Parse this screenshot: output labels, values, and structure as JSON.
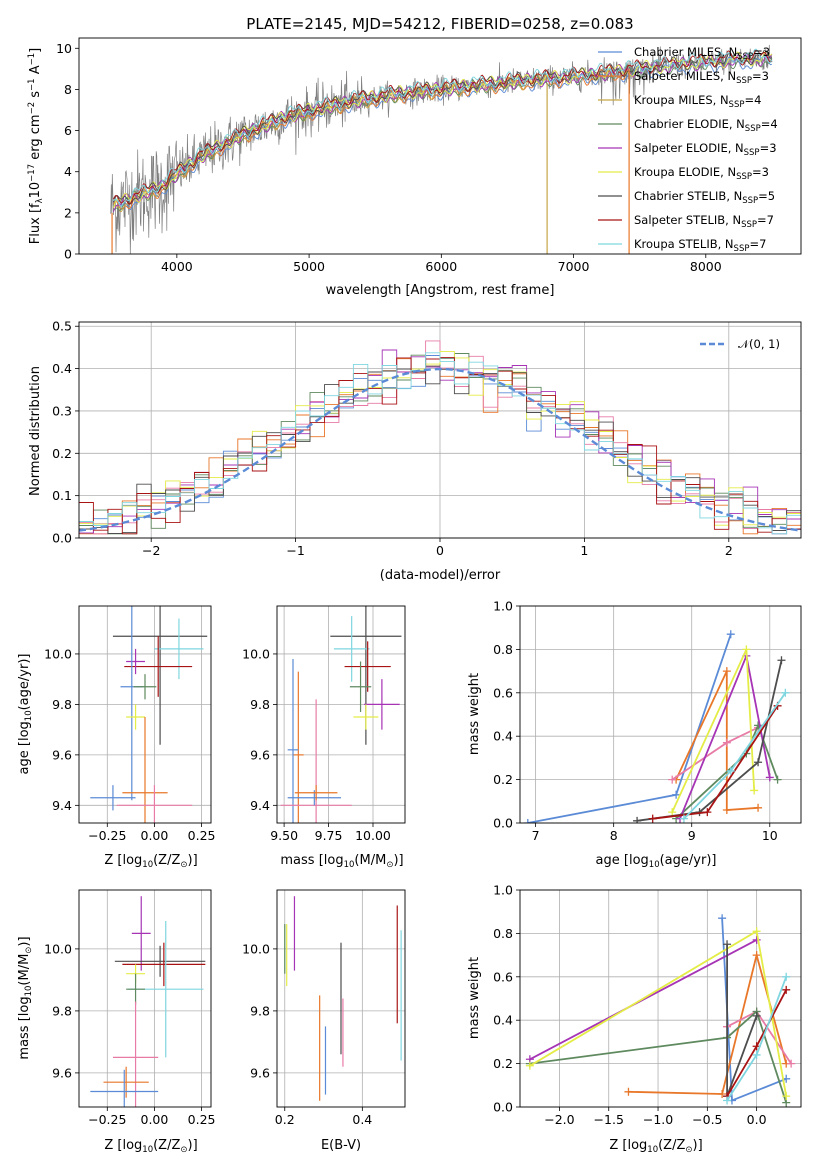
{
  "figure": {
    "title": "PLATE=2145, MJD=54212, FIBERID=0258, z=0.083"
  },
  "colors": {
    "chabrier_miles": "#5b8bd6",
    "salpeter_miles": "#e8772a",
    "kroupa_miles": "#c6a646",
    "chabrier_elodie": "#5f8a5f",
    "salpeter_elodie": "#a634b5",
    "kroupa_elodie": "#e4ec46",
    "chabrier_stelib": "#4d4d4d",
    "salpeter_stelib": "#a81414",
    "kroupa_stelib": "#7fd6e0",
    "data": "#7f7f7f",
    "pink": "#e87ba6",
    "normal": "#5b8bd6"
  },
  "chart_data": [
    {
      "id": "spectrum",
      "type": "line",
      "title": "PLATE=2145, MJD=54212, FIBERID=0258, z=0.083",
      "xlabel": "wavelength [Angstrom, rest frame]",
      "ylabel": "Flux [f_λ 10^-17 erg cm^-2 s^-1 A^-1]",
      "xlim": [
        3260,
        8720
      ],
      "ylim": [
        0,
        10.5
      ],
      "xticks": [
        4000,
        5000,
        6000,
        7000,
        8000
      ],
      "yticks": [
        0,
        2,
        4,
        6,
        8,
        10
      ],
      "legend_position": "upper-right",
      "legend": [
        {
          "base": "Chabrier MILES, N",
          "sub": "SSP",
          "tail": "=3",
          "color": "#5b8bd6"
        },
        {
          "base": "Salpeter MILES, N",
          "sub": "SSP",
          "tail": "=3",
          "color": "#e8772a"
        },
        {
          "base": "Kroupa MILES, N",
          "sub": "SSP",
          "tail": "=4",
          "color": "#c6a646"
        },
        {
          "base": "Chabrier ELODIE, N",
          "sub": "SSP",
          "tail": "=4",
          "color": "#5f8a5f"
        },
        {
          "base": "Salpeter ELODIE, N",
          "sub": "SSP",
          "tail": "=3",
          "color": "#a634b5"
        },
        {
          "base": "Kroupa ELODIE, N",
          "sub": "SSP",
          "tail": "=3",
          "color": "#e4ec46"
        },
        {
          "base": "Chabrier STELIB, N",
          "sub": "SSP",
          "tail": "=5",
          "color": "#4d4d4d"
        },
        {
          "base": "Salpeter STELIB, N",
          "sub": "SSP",
          "tail": "=7",
          "color": "#a81414"
        },
        {
          "base": "Kroupa STELIB, N",
          "sub": "SSP",
          "tail": "=7",
          "color": "#7fd6e0"
        }
      ],
      "continuum": {
        "x": [
          3500,
          3700,
          3900,
          4000,
          4200,
          4500,
          4800,
          5100,
          5400,
          5700,
          6000,
          6300,
          6600,
          7000,
          7400,
          7800,
          8200,
          8500
        ],
        "y": [
          2.3,
          2.8,
          3.3,
          3.9,
          4.8,
          5.8,
          6.6,
          7.1,
          7.5,
          7.8,
          8.0,
          8.2,
          8.4,
          8.6,
          8.9,
          9.2,
          9.4,
          9.5
        ]
      },
      "model_cutoffs": [
        {
          "series": "Kroupa MILES",
          "x": 6800,
          "y_from": 8.3
        },
        {
          "series": "Salpeter MILES",
          "x": 7420,
          "y_from": 9.0
        }
      ]
    },
    {
      "id": "residuals",
      "type": "step",
      "xlabel": "(data-model)/error",
      "ylabel": "Normed distribution",
      "xlim": [
        -2.5,
        2.5
      ],
      "ylim": [
        0,
        0.51
      ],
      "xticks": [
        -2,
        -1,
        0,
        1,
        2
      ],
      "yticks": [
        0.0,
        0.1,
        0.2,
        0.3,
        0.4,
        0.5
      ],
      "grid": true,
      "legend_position": "upper-right",
      "legend": [
        {
          "label": "𝒩(0, 1)",
          "color": "#5b8bd6",
          "dash": true
        }
      ],
      "bin_width": 0.1
    },
    {
      "id": "age_vs_Z",
      "type": "errorbar",
      "xlabel": "Z [log10(Z/Z⊙)]",
      "ylabel": "age [log10(age/yr)]",
      "xlim": [
        -0.4,
        0.3
      ],
      "ylim": [
        9.33,
        10.19
      ],
      "xticks": [
        -0.25,
        0.0,
        0.25
      ],
      "yticks": [
        9.4,
        9.6,
        9.8,
        10.0
      ],
      "grid": true,
      "points": [
        {
          "x": 0.03,
          "y": 10.07,
          "xerr": 0.25,
          "yerr": 0.43,
          "color": "#4d4d4d"
        },
        {
          "x": 0.13,
          "y": 10.02,
          "xerr": 0.13,
          "yerr": 0.12,
          "color": "#7fd6e0"
        },
        {
          "x": 0.02,
          "y": 9.95,
          "xerr": 0.18,
          "yerr": 0.12,
          "color": "#a81414"
        },
        {
          "x": -0.1,
          "y": 9.97,
          "xerr": 0.05,
          "yerr": 0.05,
          "color": "#a634b5"
        },
        {
          "x": -0.12,
          "y": 9.87,
          "xerr": 0.06,
          "yerr": 0.45,
          "color": "#5b8bd6"
        },
        {
          "x": -0.05,
          "y": 9.87,
          "xerr": 0.06,
          "yerr": 0.05,
          "color": "#5f8a5f"
        },
        {
          "x": -0.1,
          "y": 9.75,
          "xerr": 0.05,
          "yerr": 0.05,
          "color": "#e4ec46"
        },
        {
          "x": -0.05,
          "y": 9.45,
          "xerr": 0.12,
          "yerr": 0.3,
          "color": "#e8772a"
        },
        {
          "x": -0.22,
          "y": 9.43,
          "xerr": 0.12,
          "yerr": 0.05,
          "color": "#5b8bd6"
        },
        {
          "x": 0.0,
          "y": 9.4,
          "xerr": 0.2,
          "yerr": 0.08,
          "color": "#e87ba6"
        }
      ]
    },
    {
      "id": "age_vs_mass",
      "type": "errorbar",
      "xlabel": "mass [log10(M/M⊙)]",
      "ylabel": "",
      "xlim": [
        9.46,
        10.18
      ],
      "ylim": [
        9.33,
        10.19
      ],
      "xticks": [
        9.5,
        9.75,
        10.0
      ],
      "yticks": [
        9.4,
        9.6,
        9.8,
        10.0
      ],
      "grid": true,
      "points": [
        {
          "x": 9.96,
          "y": 10.07,
          "xerr": 0.2,
          "yerr": 0.43,
          "color": "#4d4d4d"
        },
        {
          "x": 9.88,
          "y": 10.02,
          "xerr": 0.1,
          "yerr": 0.13,
          "color": "#7fd6e0"
        },
        {
          "x": 9.97,
          "y": 9.95,
          "xerr": 0.13,
          "yerr": 0.1,
          "color": "#a81414"
        },
        {
          "x": 9.93,
          "y": 9.87,
          "xerr": 0.06,
          "yerr": 0.1,
          "color": "#5f8a5f"
        },
        {
          "x": 10.05,
          "y": 9.8,
          "xerr": 0.1,
          "yerr": 0.1,
          "color": "#a634b5"
        },
        {
          "x": 9.96,
          "y": 9.75,
          "xerr": 0.07,
          "yerr": 0.05,
          "color": "#e4ec46"
        },
        {
          "x": 9.58,
          "y": 9.6,
          "xerr": 0.03,
          "yerr": 0.33,
          "color": "#e8772a"
        },
        {
          "x": 9.55,
          "y": 9.62,
          "xerr": 0.03,
          "yerr": 0.36,
          "color": "#5b8bd6"
        },
        {
          "x": 9.68,
          "y": 9.4,
          "xerr": 0.2,
          "yerr": 0.42,
          "color": "#e87ba6"
        },
        {
          "x": 9.67,
          "y": 9.43,
          "xerr": 0.15,
          "yerr": 0.03,
          "color": "#5b8bd6"
        },
        {
          "x": 9.68,
          "y": 9.45,
          "xerr": 0.12,
          "yerr": 0.03,
          "color": "#e8772a"
        }
      ]
    },
    {
      "id": "weight_vs_age",
      "type": "line",
      "xlabel": "age [log10(age/yr)]",
      "ylabel": "mass weight",
      "xlim": [
        6.8,
        10.4
      ],
      "ylim": [
        0.0,
        1.0
      ],
      "xticks": [
        7,
        8,
        9,
        10
      ],
      "yticks": [
        0.0,
        0.2,
        0.4,
        0.6,
        0.8,
        1.0
      ],
      "grid": true,
      "series": [
        {
          "color": "#5b8bd6",
          "x": [
            6.9,
            8.8,
            9.5
          ],
          "y": [
            0.0,
            0.13,
            0.87
          ]
        },
        {
          "color": "#e8772a",
          "x": [
            8.8,
            9.45,
            9.45,
            9.85
          ],
          "y": [
            0.2,
            0.7,
            0.06,
            0.07
          ]
        },
        {
          "color": "#e87ba6",
          "x": [
            8.75,
            9.45,
            9.85
          ],
          "y": [
            0.2,
            0.37,
            0.44
          ]
        },
        {
          "color": "#5f8a5f",
          "x": [
            8.8,
            9.7,
            9.85,
            10.1
          ],
          "y": [
            0.02,
            0.32,
            0.45,
            0.2
          ]
        },
        {
          "color": "#a634b5",
          "x": [
            8.85,
            9.7,
            10.0
          ],
          "y": [
            0.02,
            0.77,
            0.21
          ]
        },
        {
          "color": "#e4ec46",
          "x": [
            8.75,
            9.7,
            9.8
          ],
          "y": [
            0.05,
            0.8,
            0.15
          ]
        },
        {
          "color": "#4d4d4d",
          "x": [
            8.3,
            9.1,
            9.85,
            10.15
          ],
          "y": [
            0.01,
            0.05,
            0.28,
            0.75
          ]
        },
        {
          "color": "#a81414",
          "x": [
            8.5,
            9.2,
            10.1
          ],
          "y": [
            0.02,
            0.05,
            0.54
          ]
        },
        {
          "color": "#7fd6e0",
          "x": [
            8.9,
            9.5,
            10.2
          ],
          "y": [
            0.02,
            0.24,
            0.6
          ]
        }
      ]
    },
    {
      "id": "mass_vs_Z",
      "type": "errorbar",
      "xlabel": "Z [log10(Z/Z⊙)]",
      "ylabel": "mass [log10(M/M⊙)]",
      "xlim": [
        -0.4,
        0.3
      ],
      "ylim": [
        9.49,
        10.19
      ],
      "xticks": [
        -0.25,
        0.0,
        0.25
      ],
      "yticks": [
        9.6,
        9.8,
        10.0
      ],
      "grid": true,
      "points": [
        {
          "x": -0.07,
          "y": 10.05,
          "xerr": 0.05,
          "yerr": 0.12,
          "color": "#a634b5"
        },
        {
          "x": 0.03,
          "y": 9.96,
          "xerr": 0.24,
          "yerr": 0.05,
          "color": "#4d4d4d"
        },
        {
          "x": 0.05,
          "y": 9.95,
          "xerr": 0.22,
          "yerr": 0.07,
          "color": "#a81414"
        },
        {
          "x": -0.1,
          "y": 9.92,
          "xerr": 0.05,
          "yerr": 0.03,
          "color": "#e4ec46"
        },
        {
          "x": 0.06,
          "y": 9.87,
          "xerr": 0.2,
          "yerr": 0.22,
          "color": "#7fd6e0"
        },
        {
          "x": -0.1,
          "y": 9.87,
          "xerr": 0.05,
          "yerr": 0.05,
          "color": "#5f8a5f"
        },
        {
          "x": -0.1,
          "y": 9.65,
          "xerr": 0.12,
          "yerr": 0.18,
          "color": "#e87ba6"
        },
        {
          "x": -0.15,
          "y": 9.57,
          "xerr": 0.12,
          "yerr": 0.05,
          "color": "#e8772a"
        },
        {
          "x": -0.16,
          "y": 9.54,
          "xerr": 0.18,
          "yerr": 0.07,
          "color": "#5b8bd6"
        }
      ]
    },
    {
      "id": "mass_vs_EBV",
      "type": "errorbar",
      "xlabel": "E(B-V)",
      "ylabel": "",
      "xlim": [
        0.18,
        0.51
      ],
      "ylim": [
        9.49,
        10.19
      ],
      "xticks": [
        0.2,
        0.4
      ],
      "yticks": [
        9.6,
        9.8,
        10.0
      ],
      "grid": true,
      "points": [
        {
          "x": 0.2,
          "y": 10.0,
          "yerr": 0.08,
          "color": "#5f8a5f"
        },
        {
          "x": 0.205,
          "y": 9.98,
          "yerr": 0.1,
          "color": "#e4ec46"
        },
        {
          "x": 0.225,
          "y": 10.05,
          "yerr": 0.12,
          "color": "#a634b5"
        },
        {
          "x": 0.29,
          "y": 9.68,
          "yerr": 0.17,
          "color": "#e8772a"
        },
        {
          "x": 0.305,
          "y": 9.64,
          "yerr": 0.11,
          "color": "#5b8bd6"
        },
        {
          "x": 0.345,
          "y": 9.84,
          "yerr": 0.18,
          "color": "#4d4d4d"
        },
        {
          "x": 0.35,
          "y": 9.73,
          "yerr": 0.11,
          "color": "#e87ba6"
        },
        {
          "x": 0.49,
          "y": 9.95,
          "yerr": 0.19,
          "color": "#a81414"
        },
        {
          "x": 0.5,
          "y": 9.85,
          "yerr": 0.21,
          "color": "#7fd6e0"
        }
      ]
    },
    {
      "id": "weight_vs_Z",
      "type": "line",
      "xlabel": "Z [log10(Z/Z⊙)]",
      "ylabel": "mass weight",
      "xlim": [
        -2.4,
        0.45
      ],
      "ylim": [
        0.0,
        1.0
      ],
      "xticks": [
        -2.0,
        -1.5,
        -1.0,
        -0.5,
        0.0
      ],
      "yticks": [
        0.0,
        0.2,
        0.4,
        0.6,
        0.8,
        1.0
      ],
      "grid": true,
      "series": [
        {
          "color": "#5b8bd6",
          "x": [
            -0.35,
            -0.25,
            0.3
          ],
          "y": [
            0.87,
            0.03,
            0.13
          ]
        },
        {
          "color": "#e8772a",
          "x": [
            -1.3,
            -0.35,
            0.0,
            0.3
          ],
          "y": [
            0.07,
            0.06,
            0.7,
            0.2
          ]
        },
        {
          "color": "#e87ba6",
          "x": [
            -0.3,
            0.0,
            0.35
          ],
          "y": [
            0.37,
            0.44,
            0.2
          ]
        },
        {
          "color": "#5f8a5f",
          "x": [
            -2.3,
            -0.3,
            0.0,
            0.3
          ],
          "y": [
            0.2,
            0.32,
            0.44,
            0.02
          ]
        },
        {
          "color": "#a634b5",
          "x": [
            -2.3,
            0.0
          ],
          "y": [
            0.22,
            0.77
          ]
        },
        {
          "color": "#e4ec46",
          "x": [
            -2.3,
            0.0,
            0.3
          ],
          "y": [
            0.19,
            0.81,
            0.05
          ]
        },
        {
          "color": "#4d4d4d",
          "x": [
            -0.3,
            -0.3,
            0.0
          ],
          "y": [
            0.75,
            0.05,
            0.42
          ]
        },
        {
          "color": "#a81414",
          "x": [
            -0.3,
            0.0,
            0.3
          ],
          "y": [
            0.05,
            0.28,
            0.54
          ]
        },
        {
          "color": "#7fd6e0",
          "x": [
            -0.3,
            0.0,
            0.3
          ],
          "y": [
            0.03,
            0.24,
            0.6
          ]
        }
      ]
    }
  ],
  "labels": {
    "spectrum_xlabel": "wavelength [Angstrom, rest frame]",
    "residuals_xlabel": "(data-model)/error",
    "residuals_ylabel": "Normed distribution",
    "age_ylabel_pre": "age  [log",
    "age_ylabel_post": "(age/yr)]",
    "mass_ylabel_pre": "mass [log",
    "mass_ylabel_post": "(M/M",
    "z_label_pre": "Z [log",
    "z_label_post": "(Z/Z",
    "mass_label_pre": "mass [log",
    "mass_label_post": "(M/M",
    "ebv_label": "E(B-V)",
    "weight_label": "mass weight",
    "age_xlabel_pre": "age  [log",
    "age_xlabel_post": "(age/yr)]",
    "sun": "⊙",
    "close": ")]",
    "ten": "10",
    "flux_pre": "Flux [f",
    "flux_lambda": "λ",
    "flux_mid": "10",
    "flux_exp1": "−17",
    "flux_unit": " erg cm",
    "flux_exp2": "−2",
    "flux_s": " s",
    "flux_exp3": "−1",
    "flux_a": " A",
    "flux_exp4": "−1",
    "flux_close": "]",
    "normal_legend": "𝒩(0, 1)"
  }
}
